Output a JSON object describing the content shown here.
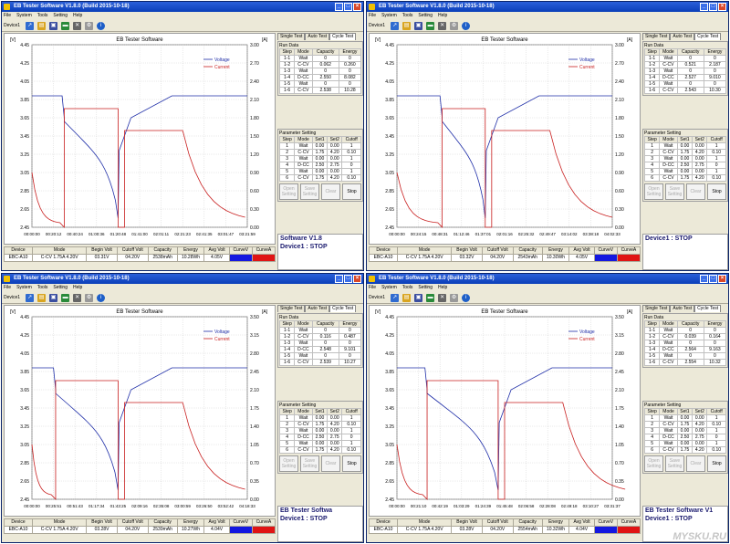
{
  "colors": {
    "voltage": "#1f2ea8",
    "current": "#c81e1e",
    "accent_title": "#0b3fb8"
  },
  "windows": [
    {
      "title": "EB Tester Software V1.8.0 (Build 2015-10-18)",
      "menu": [
        "File",
        "System",
        "Tools",
        "Setting",
        "Help"
      ],
      "device_label": "Device1",
      "chart": {
        "title": "EB Tester Software",
        "left_unit": "[V]",
        "right_unit": "[A]",
        "brand": "ZKETECH",
        "left_ticks": [
          "4.45",
          "4.25",
          "4.05",
          "3.85",
          "3.65",
          "3.45",
          "3.25",
          "3.05",
          "2.85",
          "2.65",
          "2.45"
        ],
        "right_ticks": [
          "3.00",
          "2.70",
          "2.40",
          "2.10",
          "1.80",
          "1.50",
          "1.20",
          "0.90",
          "0.60",
          "0.30",
          "0.00"
        ],
        "x_ticks": [
          "00:00:00",
          "00:20:12",
          "00:40:24",
          "01:00:36",
          "01:20:48",
          "01:41:00",
          "02:01:11",
          "02:21:23",
          "02:41:35",
          "03:01:47",
          "03:21:59"
        ],
        "legend": [
          "Voltage",
          "Current"
        ]
      },
      "tabs": [
        "Single Test",
        "Auto Test",
        "Cycle Test"
      ],
      "run_data": {
        "title": "Run Data",
        "headers": [
          "Step",
          "Mode",
          "Capacity",
          "Energy"
        ],
        "rows": [
          [
            "1-1",
            "Wait",
            "0",
            "0"
          ],
          [
            "1-2",
            "C-CV",
            "0.062",
            "0.260"
          ],
          [
            "1-3",
            "Wait",
            "0",
            "0"
          ],
          [
            "1-4",
            "D-CC",
            "2.550",
            "8.082"
          ],
          [
            "1-5",
            "Wait",
            "0",
            "0"
          ],
          [
            "1-6",
            "C-CV",
            "2.538",
            "10.28"
          ]
        ]
      },
      "param": {
        "title": "Parameter Setting",
        "headers": [
          "Step",
          "Mode",
          "Set1",
          "Set2",
          "Cutoff"
        ],
        "rows": [
          [
            "1",
            "Wait",
            "0.00",
            "0.00",
            "1"
          ],
          [
            "2",
            "C-CV",
            "1.75",
            "4.20",
            "0.10"
          ],
          [
            "3",
            "Wait",
            "0.00",
            "0.00",
            "1"
          ],
          [
            "4",
            "D-CC",
            "2.50",
            "2.75",
            "0"
          ],
          [
            "5",
            "Wait",
            "0.00",
            "0.00",
            "1"
          ],
          [
            "6",
            "C-CV",
            "1.75",
            "4.20",
            "0.10"
          ]
        ]
      },
      "buttons": [
        "Open Setting",
        "Save Setting",
        "Clear",
        "Stop"
      ],
      "status": {
        "line1": "Software V1.8",
        "line2": "Device1 : STOP"
      },
      "bottom": {
        "headers": [
          "Device",
          "Mode",
          "Begin Volt",
          "Cutoff Volt",
          "Capacity",
          "Energy",
          "Avg Volt",
          "CurveV",
          "CurveA"
        ],
        "values": [
          "EBC-A10",
          "C-CV 1.75A 4.20V",
          "03.31V",
          "04.20V",
          "2538mAh",
          "10.28Wh",
          "4.05V",
          "",
          ""
        ]
      }
    },
    {
      "title": "EB Tester Software V1.8.0 (Build 2015-10-18)",
      "menu": [
        "File",
        "System",
        "Tools",
        "Setting",
        "Help"
      ],
      "device_label": "Device1",
      "chart": {
        "title": "EB Tester Software",
        "left_unit": "[V]",
        "right_unit": "[A]",
        "brand": "ZKETECH",
        "left_ticks": [
          "4.45",
          "4.25",
          "4.05",
          "3.85",
          "3.65",
          "3.45",
          "3.25",
          "3.05",
          "2.85",
          "2.65",
          "2.45"
        ],
        "right_ticks": [
          "3.00",
          "2.70",
          "2.40",
          "2.10",
          "1.80",
          "1.50",
          "1.20",
          "0.90",
          "0.60",
          "0.30",
          "0.00"
        ],
        "x_ticks": [
          "00:00:00",
          "00:24:15",
          "00:48:31",
          "01:12:46",
          "01:37:01",
          "02:01:16",
          "02:25:32",
          "02:49:47",
          "03:14:02",
          "03:38:18",
          "04:02:33"
        ],
        "legend": [
          "Voltage",
          "Current"
        ]
      },
      "tabs": [
        "Single Test",
        "Auto Test",
        "Cycle Test"
      ],
      "run_data": {
        "title": "Run Data",
        "headers": [
          "Step",
          "Mode",
          "Capacity",
          "Energy"
        ],
        "rows": [
          [
            "1-1",
            "Wait",
            "0",
            "0"
          ],
          [
            "1-2",
            "C-CV",
            "0.521",
            "2.187"
          ],
          [
            "1-3",
            "Wait",
            "0",
            "0"
          ],
          [
            "1-4",
            "D-CC",
            "2.527",
            "9.010"
          ],
          [
            "1-5",
            "Wait",
            "0",
            "0"
          ],
          [
            "1-6",
            "C-CV",
            "2.543",
            "10.30"
          ]
        ]
      },
      "param": {
        "title": "Parameter Setting",
        "headers": [
          "Step",
          "Mode",
          "Set1",
          "Set2",
          "Cutoff"
        ],
        "rows": [
          [
            "1",
            "Wait",
            "0.00",
            "0.00",
            "1"
          ],
          [
            "2",
            "C-CV",
            "1.75",
            "4.20",
            "0.10"
          ],
          [
            "3",
            "Wait",
            "0.00",
            "0.00",
            "1"
          ],
          [
            "4",
            "D-CC",
            "2.50",
            "2.75",
            "0"
          ],
          [
            "5",
            "Wait",
            "0.00",
            "0.00",
            "1"
          ],
          [
            "6",
            "C-CV",
            "1.75",
            "4.20",
            "0.10"
          ]
        ]
      },
      "buttons": [
        "Open Setting",
        "Save Setting",
        "Clear",
        "Stop"
      ],
      "status": {
        "line1": "",
        "line2": "Device1 : STOP"
      },
      "bottom": {
        "headers": [
          "Device",
          "Mode",
          "Begin Volt",
          "Cutoff Volt",
          "Capacity",
          "Energy",
          "Avg Volt",
          "CurveV",
          "CurveA"
        ],
        "values": [
          "EBC-A10",
          "C-CV 1.75A 4.20V",
          "03.32V",
          "04.20V",
          "2543mAh",
          "10.30Wh",
          "4.05V",
          "",
          ""
        ]
      }
    },
    {
      "title": "EB Tester Software V1.8.0 (Build 2015-10-18)",
      "menu": [
        "File",
        "System",
        "Tools",
        "Setting",
        "Help"
      ],
      "device_label": "Device1",
      "chart": {
        "title": "EB Tester Software",
        "left_unit": "[V]",
        "right_unit": "[A]",
        "brand": "ZKETECH",
        "left_ticks": [
          "4.45",
          "4.25",
          "4.05",
          "3.85",
          "3.65",
          "3.45",
          "3.25",
          "3.05",
          "2.85",
          "2.65",
          "2.45"
        ],
        "right_ticks": [
          "3.50",
          "3.15",
          "2.80",
          "2.45",
          "2.10",
          "1.75",
          "1.40",
          "1.05",
          "0.70",
          "0.35",
          "0.00"
        ],
        "x_ticks": [
          "00:00:00",
          "00:25:51",
          "00:51:43",
          "01:17:34",
          "01:43:25",
          "02:09:16",
          "02:35:08",
          "03:00:59",
          "03:26:50",
          "03:52:42",
          "04:18:33"
        ],
        "legend": [
          "Voltage",
          "Current"
        ]
      },
      "tabs": [
        "Single Test",
        "Auto Test",
        "Cycle Test"
      ],
      "run_data": {
        "title": "Run Data",
        "headers": [
          "Step",
          "Mode",
          "Capacity",
          "Energy"
        ],
        "rows": [
          [
            "1-1",
            "Wait",
            "0",
            "0"
          ],
          [
            "1-2",
            "C-CV",
            "0.116",
            "0.487"
          ],
          [
            "1-3",
            "Wait",
            "0",
            "0"
          ],
          [
            "1-4",
            "D-CC",
            "2.548",
            "9.101"
          ],
          [
            "1-5",
            "Wait",
            "0",
            "0"
          ],
          [
            "1-6",
            "C-CV",
            "2.539",
            "10.27"
          ]
        ]
      },
      "param": {
        "title": "Parameter Setting",
        "headers": [
          "Step",
          "Mode",
          "Set1",
          "Set2",
          "Cutoff"
        ],
        "rows": [
          [
            "1",
            "Wait",
            "0.00",
            "0.00",
            "1"
          ],
          [
            "2",
            "C-CV",
            "1.75",
            "4.20",
            "0.10"
          ],
          [
            "3",
            "Wait",
            "0.00",
            "0.00",
            "1"
          ],
          [
            "4",
            "D-CC",
            "2.50",
            "2.75",
            "0"
          ],
          [
            "5",
            "Wait",
            "0.00",
            "0.00",
            "1"
          ],
          [
            "6",
            "C-CV",
            "1.75",
            "4.20",
            "0.10"
          ]
        ]
      },
      "buttons": [
        "Open Setting",
        "Save Setting",
        "Clear",
        "Stop"
      ],
      "status": {
        "line1": "EB Tester Softwa",
        "line2": "Device1 : STOP"
      },
      "bottom": {
        "headers": [
          "Device",
          "Mode",
          "Begin Volt",
          "Cutoff Volt",
          "Capacity",
          "Energy",
          "Avg Volt",
          "CurveV",
          "CurveA"
        ],
        "values": [
          "EBC-A10",
          "C-CV 1.75A 4.20V",
          "03.28V",
          "04.20V",
          "2539mAh",
          "10.27Wh",
          "4.04V",
          "",
          ""
        ]
      }
    },
    {
      "title": "EB Tester Software V1.8.0 (Build 2015-10-18)",
      "menu": [
        "File",
        "System",
        "Tools",
        "Setting",
        "Help"
      ],
      "device_label": "Device1",
      "chart": {
        "title": "EB Tester Software",
        "left_unit": "[V]",
        "right_unit": "[A]",
        "brand": "ZKETECH",
        "left_ticks": [
          "4.45",
          "4.25",
          "4.05",
          "3.85",
          "3.65",
          "3.45",
          "3.25",
          "3.05",
          "2.85",
          "2.65",
          "2.45"
        ],
        "right_ticks": [
          "3.50",
          "3.15",
          "2.80",
          "2.45",
          "2.10",
          "1.75",
          "1.40",
          "1.05",
          "0.70",
          "0.35",
          "0.00"
        ],
        "x_ticks": [
          "00:00:00",
          "00:21:10",
          "00:42:19",
          "01:03:29",
          "01:24:39",
          "01:45:48",
          "02:06:58",
          "02:28:08",
          "02:49:18",
          "03:10:27",
          "03:31:37"
        ],
        "legend": [
          "Voltage",
          "Current"
        ]
      },
      "tabs": [
        "Single Test",
        "Auto Test",
        "Cycle Test"
      ],
      "run_data": {
        "title": "Run Data",
        "headers": [
          "Step",
          "Mode",
          "Capacity",
          "Energy"
        ],
        "rows": [
          [
            "1-1",
            "Wait",
            "0",
            "0"
          ],
          [
            "1-2",
            "C-CV",
            "0.039",
            "0.164"
          ],
          [
            "1-3",
            "Wait",
            "0",
            "0"
          ],
          [
            "1-4",
            "D-CC",
            "2.564",
            "9.163"
          ],
          [
            "1-5",
            "Wait",
            "0",
            "0"
          ],
          [
            "1-6",
            "C-CV",
            "2.554",
            "10.32"
          ]
        ]
      },
      "param": {
        "title": "Parameter Setting",
        "headers": [
          "Step",
          "Mode",
          "Set1",
          "Set2",
          "Cutoff"
        ],
        "rows": [
          [
            "1",
            "Wait",
            "0.00",
            "0.00",
            "1"
          ],
          [
            "2",
            "C-CV",
            "1.75",
            "4.20",
            "0.10"
          ],
          [
            "3",
            "Wait",
            "0.00",
            "0.00",
            "1"
          ],
          [
            "4",
            "D-CC",
            "2.50",
            "2.75",
            "0"
          ],
          [
            "5",
            "Wait",
            "0.00",
            "0.00",
            "1"
          ],
          [
            "6",
            "C-CV",
            "1.75",
            "4.20",
            "0.10"
          ]
        ]
      },
      "buttons": [
        "Open Setting",
        "Save Setting",
        "Clear",
        "Stop"
      ],
      "status": {
        "line1": "EB Tester Software V1",
        "line2": "Device1 : STOP"
      },
      "bottom": {
        "headers": [
          "Device",
          "Mode",
          "Begin Volt",
          "Cutoff Volt",
          "Capacity",
          "Energy",
          "Avg Volt",
          "CurveV",
          "CurveA"
        ],
        "values": [
          "EBC-A10",
          "C-CV 1.75A 4.20V",
          "03.28V",
          "04.20V",
          "2554mAh",
          "10.32Wh",
          "4.04V",
          "",
          ""
        ]
      }
    }
  ],
  "watermark": "MYSKU.RU"
}
